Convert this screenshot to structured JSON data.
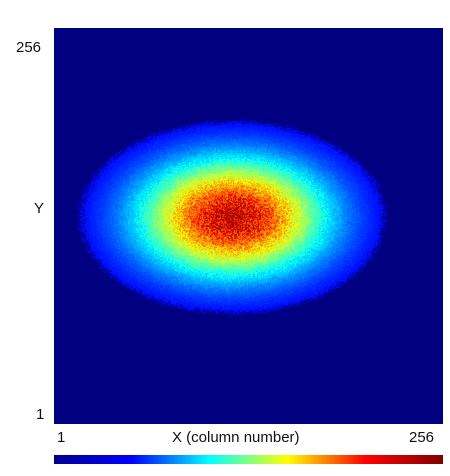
{
  "chart_data": {
    "type": "heatmap",
    "title": "",
    "xlabel": "X (column number)",
    "ylabel": "Y",
    "x_tick_labels": [
      "1",
      "256"
    ],
    "y_tick_labels": [
      "256",
      "1"
    ],
    "xlim": [
      1,
      256
    ],
    "ylim": [
      1,
      256
    ],
    "colormap": "jet",
    "colorbar": "horizontal-bottom",
    "grid": false,
    "blob": {
      "center_x": 118,
      "center_y": 134,
      "sigma_x": 42,
      "sigma_y": 26,
      "peak_value": 1.0,
      "background_value": 0.0
    }
  }
}
